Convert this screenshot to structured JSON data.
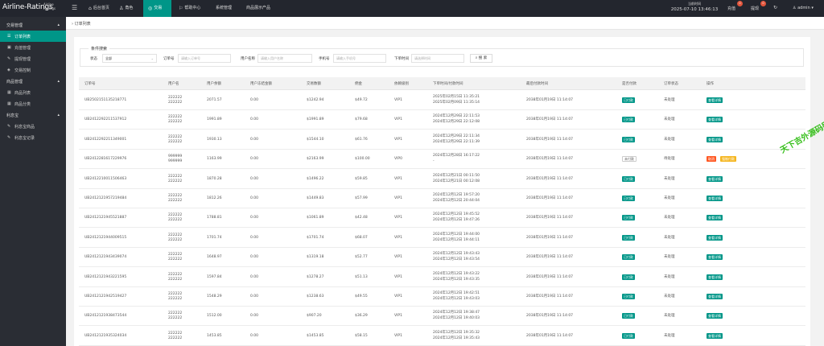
{
  "app": {
    "name": "Airline-Ratings",
    "sub": "Airline Ratings"
  },
  "topnav": [
    {
      "label": "后台首页",
      "icon": "⌂"
    },
    {
      "label": "角色",
      "icon": "♙"
    },
    {
      "label": "交易",
      "icon": "◎"
    },
    {
      "label": "帮助中心",
      "icon": "⚐"
    },
    {
      "label": "系统管理",
      "icon": ""
    },
    {
      "label": "商品展示产品",
      "icon": ""
    }
  ],
  "clock": {
    "label": "当前时间",
    "value": "2025-07-10 13:46:13"
  },
  "top_right": {
    "recharge": "充值",
    "recharge_count": "0",
    "withdraw": "提现",
    "withdraw_count": "0",
    "user": "admin"
  },
  "sidebar": {
    "groups": [
      {
        "label": "交易管理",
        "items": [
          "订单列表",
          "充值管理",
          "提现管理",
          "交易控制"
        ]
      },
      {
        "label": "商品管理",
        "items": [
          "商品列表",
          "商品分类"
        ]
      },
      {
        "label": "利息宝",
        "items": [
          "利息宝商品",
          "利息宝记录"
        ]
      }
    ]
  },
  "tab": {
    "label": "订单列表"
  },
  "filter": {
    "legend": "条件搜索",
    "status_label": "状态",
    "status_value": "全部",
    "order_label": "订单号",
    "order_placeholder": "请输入订单号",
    "user_label": "用户名称",
    "user_placeholder": "请输入用户名称",
    "phone_label": "手机号",
    "phone_placeholder": "请输入手机号",
    "time_label": "下单时间",
    "time_placeholder": "请选择时间",
    "search": "搜 索"
  },
  "table": {
    "columns": [
      "订单号",
      "用户名",
      "用户余额",
      "用户冻结金额",
      "交易数额",
      "佣金",
      "依赖级别",
      "下单时间/付款时间",
      "最后付款时间",
      "是否付款",
      "订单状态",
      "操作"
    ],
    "rows": [
      {
        "order": "UB2502151135218771",
        "user": [
          "222222",
          "222222"
        ],
        "balance": "2071.57",
        "frozen": "0.00",
        "amount": "$1242.94",
        "commission": "$49.72",
        "level": "VIP1",
        "time": [
          "2025年02月15日 11:35:21",
          "2025年02月09日 11:35:14"
        ],
        "last": "2038年01月19日 11:14:07",
        "paid": "已付款",
        "status": "未处理",
        "actions": [
          "查看详情"
        ]
      },
      {
        "order": "UB2412292211537912",
        "user": [
          "222222",
          "222222"
        ],
        "balance": "1991.89",
        "frozen": "0.00",
        "amount": "$1991.89",
        "commission": "$79.68",
        "level": "VIP1",
        "time": [
          "2024年12月29日 22:11:53",
          "2024年12月29日 22:12:08"
        ],
        "last": "2038年01月19日 11:14:07",
        "paid": "已付款",
        "status": "未处理",
        "actions": [
          "查看详情"
        ]
      },
      {
        "order": "UB2412292211349001",
        "user": [
          "222222",
          "222222"
        ],
        "balance": "1930.13",
        "frozen": "0.00",
        "amount": "$1544.10",
        "commission": "$61.76",
        "level": "VIP1",
        "time": [
          "2024年12月29日 22:11:34",
          "2024年12月29日 22:11:39"
        ],
        "last": "2038年01月19日 11:14:07",
        "paid": "已付款",
        "status": "未处理",
        "actions": [
          "查看详情"
        ]
      },
      {
        "order": "UB2412281617229976",
        "user": [
          "999999",
          "999999"
        ],
        "balance": "1163.99",
        "frozen": "0.00",
        "amount": "$2163.99",
        "commission": "$100.00",
        "level": "VIP0",
        "time": [
          "2024年12月28日 16:17:22",
          "-"
        ],
        "last": "2038年01月19日 11:14:07",
        "paid": "未付款",
        "status": "待处理",
        "actions": [
          "取消",
          "强制付款"
        ]
      },
      {
        "order": "UB2412210011506463",
        "user": [
          "222222",
          "222222"
        ],
        "balance": "1870.28",
        "frozen": "0.00",
        "amount": "$1496.22",
        "commission": "$59.85",
        "level": "VIP1",
        "time": [
          "2024年12月21日 00:11:50",
          "2024年12月21日 00:12:08"
        ],
        "last": "2038年01月19日 11:14:07",
        "paid": "已付款",
        "status": "未处理",
        "actions": [
          "查看详情"
        ]
      },
      {
        "order": "UB2412121957219484",
        "user": [
          "222222",
          "222222"
        ],
        "balance": "1812.26",
        "frozen": "0.00",
        "amount": "$1449.83",
        "commission": "$57.99",
        "level": "VIP1",
        "time": [
          "2024年12月12日 19:57:20",
          "2024年12月12日 20:44:04"
        ],
        "last": "2038年01月19日 11:14:07",
        "paid": "已付款",
        "status": "未处理",
        "actions": [
          "查看详情"
        ]
      },
      {
        "order": "UB2412121945521887",
        "user": [
          "222222",
          "222222"
        ],
        "balance": "1788.81",
        "frozen": "0.00",
        "amount": "$1061.89",
        "commission": "$42.48",
        "level": "VIP1",
        "time": [
          "2024年12月12日 19:45:52",
          "2024年12月12日 19:47:26"
        ],
        "last": "2038年01月19日 11:14:07",
        "paid": "已付款",
        "status": "未处理",
        "actions": [
          "查看详情"
        ]
      },
      {
        "order": "UB2412121944009515",
        "user": [
          "222222",
          "222222"
        ],
        "balance": "1701.74",
        "frozen": "0.00",
        "amount": "$1701.74",
        "commission": "$68.07",
        "level": "VIP1",
        "time": [
          "2024年12月12日 19:44:00",
          "2024年12月12日 19:44:11"
        ],
        "last": "2038年01月19日 11:14:07",
        "paid": "已付款",
        "status": "未处理",
        "actions": [
          "查看详情"
        ]
      },
      {
        "order": "UB2412121943439074",
        "user": [
          "222222",
          "222222"
        ],
        "balance": "1648.97",
        "frozen": "0.00",
        "amount": "$1319.18",
        "commission": "$52.77",
        "level": "VIP1",
        "time": [
          "2024年12月12日 19:43:43",
          "2024年12月12日 19:43:54"
        ],
        "last": "2038年01月19日 11:14:07",
        "paid": "已付款",
        "status": "未处理",
        "actions": [
          "查看详情"
        ]
      },
      {
        "order": "UB2412121943221595",
        "user": [
          "222222",
          "222222"
        ],
        "balance": "1597.84",
        "frozen": "0.00",
        "amount": "$1278.27",
        "commission": "$51.13",
        "level": "VIP1",
        "time": [
          "2024年12月12日 19:43:22",
          "2024年12月12日 19:43:35"
        ],
        "last": "2038年01月19日 11:14:07",
        "paid": "已付款",
        "status": "未处理",
        "actions": [
          "查看详情"
        ]
      },
      {
        "order": "UB2412121942519427",
        "user": [
          "222222",
          "222222"
        ],
        "balance": "1548.29",
        "frozen": "0.00",
        "amount": "$1238.63",
        "commission": "$49.55",
        "level": "VIP1",
        "time": [
          "2024年12月12日 19:42:51",
          "2024年12月12日 19:43:03"
        ],
        "last": "2038年01月19日 11:14:07",
        "paid": "已付款",
        "status": "未处理",
        "actions": [
          "查看详情"
        ]
      },
      {
        "order": "UB2412121938473544",
        "user": [
          "222222",
          "222222"
        ],
        "balance": "1512.00",
        "frozen": "0.00",
        "amount": "$907.20",
        "commission": "$36.29",
        "level": "VIP1",
        "time": [
          "2024年12月12日 19:38:47",
          "2024年12月12日 19:40:03"
        ],
        "last": "2038年01月19日 11:14:07",
        "paid": "已付款",
        "status": "未处理",
        "actions": [
          "查看详情"
        ]
      },
      {
        "order": "UB2412121935324034",
        "user": [
          "222222",
          "222222"
        ],
        "balance": "1453.85",
        "frozen": "0.00",
        "amount": "$1453.85",
        "commission": "$58.15",
        "level": "VIP1",
        "time": [
          "2024年12月12日 19:35:32",
          "2024年12月12日 19:35:43"
        ],
        "last": "2038年01月19日 11:14:07",
        "paid": "已付款",
        "status": "未处理",
        "actions": [
          "查看详情"
        ]
      }
    ]
  },
  "watermark": "天下吉外源码网 tcym.cc",
  "colors": {
    "accent": "#009688",
    "topbar": "#23262e",
    "sidebar": "#2a2d34",
    "danger": "#ff5722",
    "warn": "#f5b620"
  }
}
